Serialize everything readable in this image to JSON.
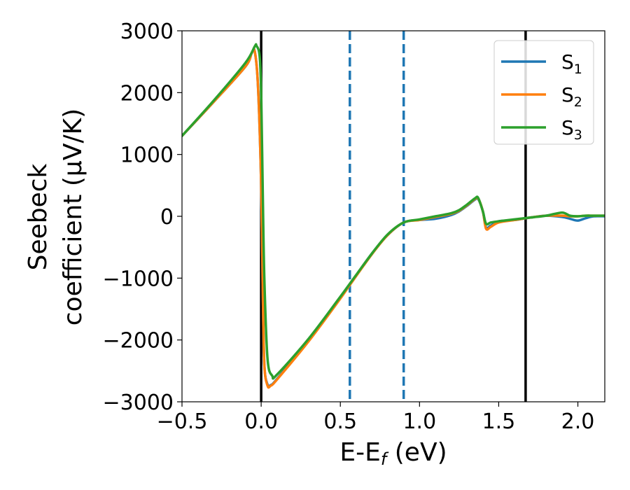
{
  "chart_data": {
    "type": "line",
    "xlabel": "E-E",
    "xlabel_sub": "f",
    "xlabel_unit": " (eV)",
    "ylabel_line1": "Seebeck",
    "ylabel_line2": "coefficient  (μV/K)",
    "xlim": [
      -0.5,
      2.17
    ],
    "ylim": [
      -3000,
      3000
    ],
    "x_ticks": [
      -0.5,
      0.0,
      0.5,
      1.0,
      1.5,
      2.0
    ],
    "x_tick_labels": [
      "−0.5",
      "0.0",
      "0.5",
      "1.0",
      "1.5",
      "2.0"
    ],
    "y_ticks": [
      -3000,
      -2000,
      -1000,
      0,
      1000,
      2000,
      3000
    ],
    "y_tick_labels": [
      "−3000",
      "−2000",
      "−1000",
      "0",
      "1000",
      "2000",
      "3000"
    ],
    "grid": false,
    "legend_position": "top-right",
    "vlines": [
      {
        "x": 0.0,
        "color": "#000000",
        "style": "solid"
      },
      {
        "x": 1.67,
        "color": "#000000",
        "style": "solid"
      },
      {
        "x": 0.56,
        "color": "#1f77b4",
        "style": "dashed"
      },
      {
        "x": 0.9,
        "color": "#1f77b4",
        "style": "dashed"
      }
    ],
    "series": [
      {
        "name": "S",
        "sub": "1",
        "color": "#1f77b4",
        "points": [
          [
            -0.5,
            1300
          ],
          [
            -0.3,
            1850
          ],
          [
            -0.1,
            2420
          ],
          [
            -0.06,
            2640
          ],
          [
            -0.04,
            2660
          ],
          [
            -0.02,
            2100
          ],
          [
            0.0,
            500
          ],
          [
            0.01,
            -1200
          ],
          [
            0.02,
            -2400
          ],
          [
            0.04,
            -2720
          ],
          [
            0.06,
            -2730
          ],
          [
            0.1,
            -2630
          ],
          [
            0.3,
            -2000
          ],
          [
            0.5,
            -1320
          ],
          [
            0.56,
            -1100
          ],
          [
            0.7,
            -600
          ],
          [
            0.8,
            -300
          ],
          [
            0.9,
            -100
          ],
          [
            1.0,
            -60
          ],
          [
            1.1,
            -40
          ],
          [
            1.2,
            20
          ],
          [
            1.25,
            80
          ],
          [
            1.3,
            170
          ],
          [
            1.35,
            270
          ],
          [
            1.37,
            280
          ],
          [
            1.4,
            80
          ],
          [
            1.42,
            -180
          ],
          [
            1.45,
            -150
          ],
          [
            1.5,
            -80
          ],
          [
            1.6,
            -60
          ],
          [
            1.7,
            -20
          ],
          [
            1.8,
            10
          ],
          [
            1.9,
            -10
          ],
          [
            1.95,
            -40
          ],
          [
            2.0,
            -70
          ],
          [
            2.05,
            -30
          ],
          [
            2.1,
            0
          ],
          [
            2.17,
            0
          ]
        ]
      },
      {
        "name": "S",
        "sub": "2",
        "color": "#ff7f0e",
        "points": [
          [
            -0.5,
            1300
          ],
          [
            -0.3,
            1850
          ],
          [
            -0.1,
            2420
          ],
          [
            -0.06,
            2640
          ],
          [
            -0.04,
            2660
          ],
          [
            -0.02,
            2100
          ],
          [
            0.0,
            500
          ],
          [
            0.01,
            -1200
          ],
          [
            0.02,
            -2400
          ],
          [
            0.04,
            -2740
          ],
          [
            0.06,
            -2740
          ],
          [
            0.1,
            -2640
          ],
          [
            0.3,
            -2020
          ],
          [
            0.5,
            -1330
          ],
          [
            0.56,
            -1110
          ],
          [
            0.7,
            -610
          ],
          [
            0.8,
            -300
          ],
          [
            0.9,
            -100
          ],
          [
            1.0,
            -60
          ],
          [
            1.1,
            -10
          ],
          [
            1.2,
            40
          ],
          [
            1.25,
            90
          ],
          [
            1.3,
            180
          ],
          [
            1.35,
            280
          ],
          [
            1.37,
            290
          ],
          [
            1.4,
            80
          ],
          [
            1.42,
            -200
          ],
          [
            1.45,
            -170
          ],
          [
            1.5,
            -100
          ],
          [
            1.6,
            -60
          ],
          [
            1.7,
            -20
          ],
          [
            1.8,
            10
          ],
          [
            1.9,
            10
          ],
          [
            1.95,
            0
          ],
          [
            2.0,
            0
          ],
          [
            2.05,
            10
          ],
          [
            2.1,
            10
          ],
          [
            2.17,
            10
          ]
        ]
      },
      {
        "name": "S",
        "sub": "3",
        "color": "#2ca02c",
        "points": [
          [
            -0.5,
            1300
          ],
          [
            -0.3,
            1870
          ],
          [
            -0.1,
            2480
          ],
          [
            -0.04,
            2750
          ],
          [
            -0.03,
            2760
          ],
          [
            -0.01,
            2600
          ],
          [
            0.0,
            2000
          ],
          [
            0.01,
            400
          ],
          [
            0.02,
            -1000
          ],
          [
            0.04,
            -2300
          ],
          [
            0.07,
            -2580
          ],
          [
            0.1,
            -2560
          ],
          [
            0.3,
            -1980
          ],
          [
            0.5,
            -1300
          ],
          [
            0.56,
            -1090
          ],
          [
            0.7,
            -600
          ],
          [
            0.8,
            -290
          ],
          [
            0.9,
            -100
          ],
          [
            1.0,
            -50
          ],
          [
            1.1,
            0
          ],
          [
            1.2,
            50
          ],
          [
            1.25,
            100
          ],
          [
            1.3,
            190
          ],
          [
            1.35,
            290
          ],
          [
            1.37,
            300
          ],
          [
            1.4,
            80
          ],
          [
            1.42,
            -120
          ],
          [
            1.45,
            -100
          ],
          [
            1.5,
            -80
          ],
          [
            1.6,
            -50
          ],
          [
            1.7,
            -20
          ],
          [
            1.8,
            10
          ],
          [
            1.9,
            60
          ],
          [
            1.95,
            10
          ],
          [
            2.0,
            0
          ],
          [
            2.05,
            10
          ],
          [
            2.1,
            10
          ],
          [
            2.17,
            10
          ]
        ]
      }
    ]
  }
}
